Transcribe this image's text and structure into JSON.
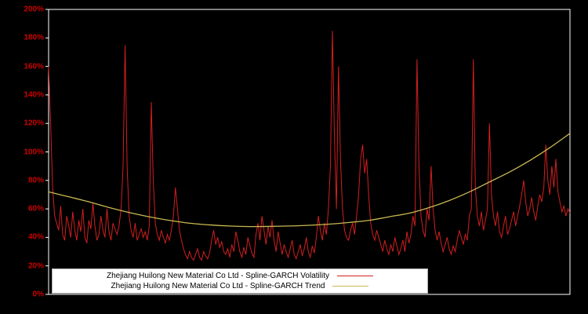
{
  "colors": {
    "background": "#000000",
    "plot_border": "#ffffff",
    "tick_label": "#cc0000",
    "volatility_line": "#d21f1f",
    "trend_line": "#c9b851",
    "legend_background": "#ffffff",
    "legend_text": "#000000"
  },
  "chart_data": {
    "type": "line",
    "title": "",
    "xlabel": "",
    "ylabel": "",
    "ylim": [
      0,
      200
    ],
    "y_tick_labels": [
      "0%",
      "20%",
      "40%",
      "60%",
      "80%",
      "100%",
      "120%",
      "140%",
      "160%",
      "180%",
      "200%"
    ],
    "y_tick_values": [
      0,
      20,
      40,
      60,
      80,
      100,
      120,
      140,
      160,
      180,
      200
    ],
    "grid": false,
    "legend_position": "bottom-center",
    "series": [
      {
        "name": "Zhejiang Huilong New Material Co Ltd - Spline-GARCH Volatility",
        "color": "#d21f1f",
        "unit": "percent",
        "values": [
          160,
          120,
          75,
          55,
          50,
          45,
          62,
          42,
          38,
          55,
          48,
          40,
          58,
          45,
          38,
          52,
          44,
          60,
          40,
          36,
          52,
          46,
          64,
          48,
          38,
          42,
          55,
          45,
          40,
          60,
          44,
          38,
          50,
          46,
          42,
          48,
          60,
          90,
          175,
          90,
          55,
          45,
          40,
          50,
          38,
          42,
          46,
          40,
          44,
          38,
          48,
          135,
          80,
          50,
          42,
          38,
          45,
          40,
          36,
          42,
          38,
          45,
          55,
          75,
          60,
          45,
          38,
          32,
          28,
          25,
          30,
          26,
          24,
          28,
          32,
          26,
          24,
          30,
          27,
          25,
          29,
          38,
          45,
          35,
          40,
          33,
          37,
          30,
          28,
          32,
          26,
          35,
          30,
          44,
          38,
          30,
          26,
          33,
          28,
          40,
          34,
          29,
          26,
          42,
          50,
          38,
          55,
          45,
          35,
          48,
          40,
          52,
          38,
          30,
          44,
          36,
          28,
          35,
          30,
          26,
          32,
          38,
          28,
          25,
          30,
          35,
          27,
          32,
          40,
          30,
          26,
          34,
          29,
          40,
          55,
          45,
          38,
          50,
          42,
          60,
          90,
          185,
          110,
          60,
          160,
          95,
          60,
          45,
          40,
          38,
          45,
          50,
          42,
          55,
          70,
          95,
          105,
          85,
          95,
          70,
          50,
          42,
          38,
          45,
          40,
          35,
          30,
          38,
          32,
          28,
          35,
          30,
          40,
          34,
          28,
          32,
          38,
          30,
          44,
          36,
          42,
          55,
          48,
          165,
          90,
          55,
          45,
          40,
          60,
          52,
          90,
          60,
          45,
          38,
          44,
          36,
          30,
          35,
          40,
          32,
          28,
          34,
          30,
          38,
          45,
          40,
          35,
          42,
          38,
          55,
          60,
          165,
          75,
          55,
          48,
          58,
          45,
          52,
          60,
          120,
          70,
          55,
          48,
          58,
          44,
          40,
          48,
          55,
          42,
          46,
          52,
          58,
          48,
          55,
          62,
          70,
          80,
          65,
          55,
          60,
          68,
          58,
          52,
          62,
          70,
          65,
          75,
          105,
          80,
          70,
          90,
          75,
          95,
          72,
          65,
          58,
          62,
          55,
          60,
          57
        ]
      },
      {
        "name": "Zhejiang Huilong New Material Co Ltd - Spline-GARCH Trend",
        "color": "#c9b851",
        "unit": "percent",
        "values": [
          72,
          68.5,
          65,
          61,
          57.5,
          54.5,
          52,
          50,
          48.8,
          48,
          47.6,
          47.7,
          48,
          48.5,
          49.3,
          50.5,
          52,
          54.5,
          57,
          61,
          66,
          72,
          79,
          86,
          94,
          103,
          113
        ]
      }
    ]
  }
}
